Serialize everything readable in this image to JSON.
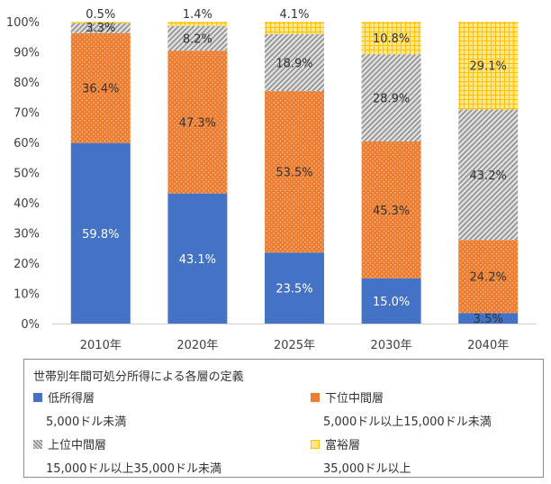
{
  "chart_data": {
    "type": "bar",
    "stacked": true,
    "categories": [
      "2010年",
      "2020年",
      "2025年",
      "2030年",
      "2040年"
    ],
    "series": [
      {
        "name": "低所得層",
        "values": [
          59.8,
          43.1,
          23.5,
          15.0,
          3.5
        ],
        "labels": [
          "59.8%",
          "43.1%",
          "23.5%",
          "15.0%",
          "3.5%"
        ],
        "color": "#4472C4",
        "pattern": "solid"
      },
      {
        "name": "下位中間層",
        "values": [
          36.4,
          47.3,
          53.5,
          45.3,
          24.2
        ],
        "labels": [
          "36.4%",
          "47.3%",
          "53.5%",
          "45.3%",
          "24.2%"
        ],
        "color": "#ED7D31",
        "pattern": "dots"
      },
      {
        "name": "上位中間層",
        "values": [
          3.3,
          8.2,
          18.9,
          28.9,
          43.2
        ],
        "labels": [
          "3.3%",
          "8.2%",
          "18.9%",
          "28.9%",
          "43.2%"
        ],
        "color": "#A5A5A5",
        "pattern": "diagonal"
      },
      {
        "name": "富裕層",
        "values": [
          0.5,
          1.4,
          4.1,
          10.8,
          29.1
        ],
        "labels": [
          "0.5%",
          "1.4%",
          "4.1%",
          "10.8%",
          "29.1%"
        ],
        "color": "#FFC000",
        "pattern": "grid"
      }
    ],
    "y_ticks": [
      "0%",
      "10%",
      "20%",
      "30%",
      "40%",
      "50%",
      "60%",
      "70%",
      "80%",
      "90%",
      "100%"
    ],
    "ylim": [
      0,
      100
    ],
    "grid": false,
    "legend_position": "bottom"
  },
  "legend": {
    "title": "世帯別年間可処分所得による各層の定義",
    "items": [
      {
        "label": "低所得層",
        "sub": "5,000ドル未満"
      },
      {
        "label": "下位中間層",
        "sub": "5,000ドル以上15,000ドル未満"
      },
      {
        "label": "上位中間層",
        "sub": "15,000ドル以上35,000ドル未満"
      },
      {
        "label": "富裕層",
        "sub": "35,000ドル以上"
      }
    ]
  }
}
